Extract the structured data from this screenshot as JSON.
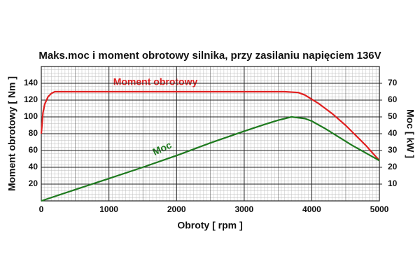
{
  "chart_data": {
    "type": "line",
    "title": "Maks.moc i moment obrotowy silnika, przy zasilaniu napięciem 136V",
    "x_label": "Obroty [ rpm ]",
    "y_label": "Moment obrotowy [ Nm ]",
    "y2_label": "Moc [ kW ]",
    "xlim": [
      0,
      5000
    ],
    "xticks": [
      0,
      1000,
      2000,
      3000,
      4000,
      5000
    ],
    "ylim": [
      0,
      160
    ],
    "yticks": [
      20,
      40,
      60,
      80,
      100,
      120,
      140
    ],
    "y2lim": [
      0,
      80
    ],
    "y2ticks": [
      10,
      20,
      30,
      40,
      50,
      60,
      70
    ],
    "grid": true,
    "series": [
      {
        "name": "Moment obrotowy",
        "color": "#e02020",
        "axis": "y",
        "x": [
          0,
          25,
          50,
          100,
          150,
          200,
          1000,
          2000,
          3000,
          3600,
          3800,
          3900,
          4000,
          4100,
          4200,
          4300,
          4400,
          4500,
          4600,
          4700,
          4800,
          4900,
          5000
        ],
        "values": [
          80,
          105,
          115,
          124,
          128,
          130,
          130,
          130,
          130,
          130,
          129,
          126,
          121,
          116,
          110,
          104,
          97,
          90,
          82,
          74,
          66,
          57,
          48
        ]
      },
      {
        "name": "Moc",
        "color": "#1e7a1e",
        "axis": "y2",
        "x": [
          0,
          500,
          1000,
          1500,
          2000,
          2500,
          3000,
          3300,
          3500,
          3700,
          3900,
          4000,
          4200,
          4400,
          4600,
          4800,
          5000
        ],
        "values": [
          0,
          6.7,
          13.3,
          20,
          27,
          34.5,
          41.5,
          45.5,
          48,
          50,
          49,
          47.5,
          43,
          38,
          33,
          28.5,
          24
        ]
      }
    ]
  }
}
